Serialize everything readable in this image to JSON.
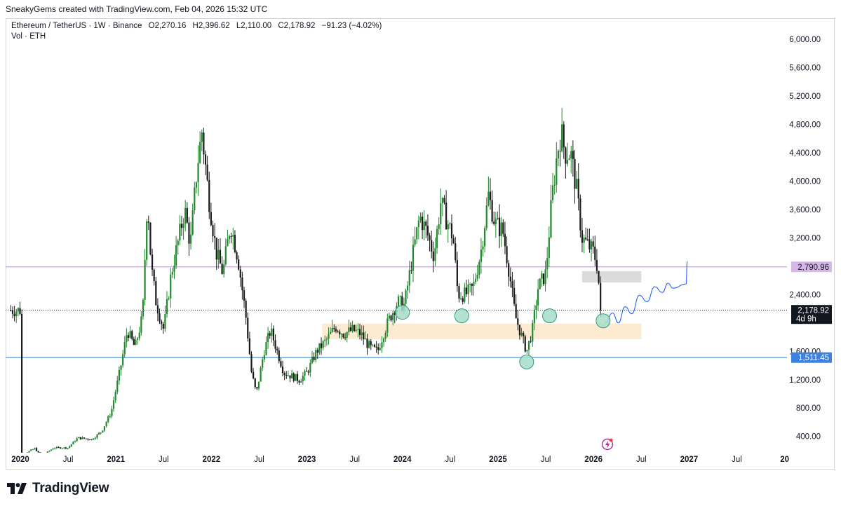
{
  "caption": "SneakyGems created with TradingView.com, Feb 04, 2026 15:32 UTC",
  "legend": {
    "symbol": "Ethereum / TetherUS · 1W · Binance",
    "o_label": "O",
    "o": "2,270.16",
    "h_label": "H",
    "h": "2,396.62",
    "l_label": "L",
    "l": "2,110.00",
    "c_label": "C",
    "c": "2,178.92",
    "change": "−91.23 (−4.02%)",
    "vol": "Vol · ETH"
  },
  "brand": "TradingView",
  "colors": {
    "up": "#22872e",
    "down": "#1a1a1a",
    "purple_line": "#c9a4dd",
    "blue_line": "#5b9bd9",
    "purple_badge": "#d7b7ea",
    "blue_badge": "#3d82e0",
    "price_badge": "#131722",
    "grey_zone": "#d9d9d9",
    "orange_zone": "#fde9cc",
    "circle_fill": "#a8dcc8",
    "circle_stroke": "#2f9b7b",
    "projection": "#2962ff"
  },
  "chart_data": {
    "type": "candlestick",
    "symbol": "ETHUSDT",
    "timeframe": "1W",
    "x_ticks": [
      {
        "label": "2020",
        "t": 2020.0,
        "bold": true
      },
      {
        "label": "Jul",
        "t": 2020.5,
        "bold": false
      },
      {
        "label": "2021",
        "t": 2021.0,
        "bold": true
      },
      {
        "label": "Jul",
        "t": 2021.5,
        "bold": false
      },
      {
        "label": "2022",
        "t": 2022.0,
        "bold": true
      },
      {
        "label": "Jul",
        "t": 2022.5,
        "bold": false
      },
      {
        "label": "2023",
        "t": 2023.0,
        "bold": true
      },
      {
        "label": "Jul",
        "t": 2023.5,
        "bold": false
      },
      {
        "label": "2024",
        "t": 2024.0,
        "bold": true
      },
      {
        "label": "Jul",
        "t": 2024.5,
        "bold": false
      },
      {
        "label": "2025",
        "t": 2025.0,
        "bold": true
      },
      {
        "label": "Jul",
        "t": 2025.5,
        "bold": false
      },
      {
        "label": "2026",
        "t": 2026.0,
        "bold": true
      },
      {
        "label": "Jul",
        "t": 2026.5,
        "bold": false
      },
      {
        "label": "2027",
        "t": 2027.0,
        "bold": true
      },
      {
        "label": "Jul",
        "t": 2027.5,
        "bold": false
      },
      {
        "label": "20",
        "t": 2028.0,
        "bold": true
      }
    ],
    "y_ticks": [
      {
        "label": "6,000.00",
        "v": 6000
      },
      {
        "label": "5,600.00",
        "v": 5600
      },
      {
        "label": "5,200.00",
        "v": 5200
      },
      {
        "label": "4,800.00",
        "v": 4800
      },
      {
        "label": "4,400.00",
        "v": 4400
      },
      {
        "label": "4,000.00",
        "v": 4000
      },
      {
        "label": "3,600.00",
        "v": 3600
      },
      {
        "label": "3,200.00",
        "v": 3200
      },
      {
        "label": "2,400.00",
        "v": 2400
      },
      {
        "label": "1,600.00",
        "v": 1600
      },
      {
        "label": "1,200.00",
        "v": 1200
      },
      {
        "label": "800.00",
        "v": 800
      },
      {
        "label": "400.00",
        "v": 400
      }
    ],
    "price_path": [
      [
        2020.0,
        130
      ],
      [
        2020.15,
        230
      ],
      [
        2020.22,
        120
      ],
      [
        2020.35,
        240
      ],
      [
        2020.5,
        240
      ],
      [
        2020.6,
        380
      ],
      [
        2020.75,
        360
      ],
      [
        2020.85,
        470
      ],
      [
        2020.95,
        740
      ],
      [
        2021.05,
        1380
      ],
      [
        2021.12,
        1900
      ],
      [
        2021.2,
        1650
      ],
      [
        2021.28,
        2100
      ],
      [
        2021.33,
        3800
      ],
      [
        2021.37,
        2800
      ],
      [
        2021.42,
        2300
      ],
      [
        2021.5,
        1900
      ],
      [
        2021.58,
        2700
      ],
      [
        2021.66,
        3200
      ],
      [
        2021.72,
        3600
      ],
      [
        2021.78,
        3100
      ],
      [
        2021.85,
        4200
      ],
      [
        2021.9,
        4700
      ],
      [
        2021.97,
        3800
      ],
      [
        2022.05,
        3000
      ],
      [
        2022.12,
        2700
      ],
      [
        2022.2,
        3400
      ],
      [
        2022.28,
        2900
      ],
      [
        2022.36,
        2100
      ],
      [
        2022.42,
        1300
      ],
      [
        2022.47,
        1000
      ],
      [
        2022.55,
        1600
      ],
      [
        2022.62,
        1900
      ],
      [
        2022.7,
        1550
      ],
      [
        2022.76,
        1300
      ],
      [
        2022.84,
        1250
      ],
      [
        2022.92,
        1200
      ],
      [
        2023.0,
        1300
      ],
      [
        2023.1,
        1600
      ],
      [
        2023.2,
        1750
      ],
      [
        2023.3,
        1950
      ],
      [
        2023.38,
        1850
      ],
      [
        2023.48,
        1900
      ],
      [
        2023.56,
        1850
      ],
      [
        2023.66,
        1650
      ],
      [
        2023.74,
        1600
      ],
      [
        2023.8,
        1850
      ],
      [
        2023.86,
        2050
      ],
      [
        2023.95,
        2300
      ],
      [
        2024.02,
        2250
      ],
      [
        2024.1,
        2900
      ],
      [
        2024.18,
        3500
      ],
      [
        2024.25,
        3300
      ],
      [
        2024.33,
        2950
      ],
      [
        2024.4,
        3700
      ],
      [
        2024.45,
        3500
      ],
      [
        2024.53,
        3200
      ],
      [
        2024.58,
        2400
      ],
      [
        2024.66,
        2400
      ],
      [
        2024.74,
        2500
      ],
      [
        2024.82,
        3000
      ],
      [
        2024.9,
        3800
      ],
      [
        2024.97,
        3400
      ],
      [
        2025.05,
        3300
      ],
      [
        2025.12,
        2700
      ],
      [
        2025.18,
        2100
      ],
      [
        2025.25,
        1800
      ],
      [
        2025.3,
        1600
      ],
      [
        2025.36,
        1900
      ],
      [
        2025.42,
        2500
      ],
      [
        2025.5,
        2700
      ],
      [
        2025.56,
        3700
      ],
      [
        2025.62,
        4400
      ],
      [
        2025.66,
        4700
      ],
      [
        2025.7,
        4400
      ],
      [
        2025.76,
        4400
      ],
      [
        2025.82,
        3900
      ],
      [
        2025.88,
        3200
      ],
      [
        2025.94,
        3100
      ],
      [
        2026.0,
        3000
      ],
      [
        2026.04,
        2800
      ],
      [
        2026.07,
        2300
      ],
      [
        2026.09,
        2178.92
      ]
    ],
    "horizontal_lines": [
      {
        "value": 2790.96,
        "label": "2,790.96",
        "kind": "purple"
      },
      {
        "value": 1511.45,
        "label": "1,511.45",
        "kind": "blue"
      }
    ],
    "current_price": {
      "value": 2178.92,
      "label": "2,178.92",
      "countdown": "4d 9h"
    },
    "zones": [
      {
        "t0": 2025.88,
        "t1": 2026.5,
        "v0": 2570,
        "v1": 2730,
        "kind": "grey"
      },
      {
        "t0": 2023.16,
        "t1": 2026.5,
        "v0": 1770,
        "v1": 1990,
        "kind": "orange"
      }
    ],
    "marked_lows": [
      {
        "t": 2024.0,
        "v": 2150
      },
      {
        "t": 2024.62,
        "v": 2100
      },
      {
        "t": 2025.3,
        "v": 1450
      },
      {
        "t": 2025.54,
        "v": 2100
      },
      {
        "t": 2026.1,
        "v": 2030
      }
    ],
    "projection_path": [
      [
        2026.12,
        2000
      ],
      [
        2026.2,
        2140
      ],
      [
        2026.26,
        2000
      ],
      [
        2026.33,
        2230
      ],
      [
        2026.4,
        2130
      ],
      [
        2026.48,
        2390
      ],
      [
        2026.56,
        2300
      ],
      [
        2026.64,
        2510
      ],
      [
        2026.72,
        2430
      ],
      [
        2026.78,
        2560
      ],
      [
        2026.83,
        2490
      ],
      [
        2026.97,
        2550
      ],
      [
        2026.98,
        2870
      ]
    ]
  }
}
